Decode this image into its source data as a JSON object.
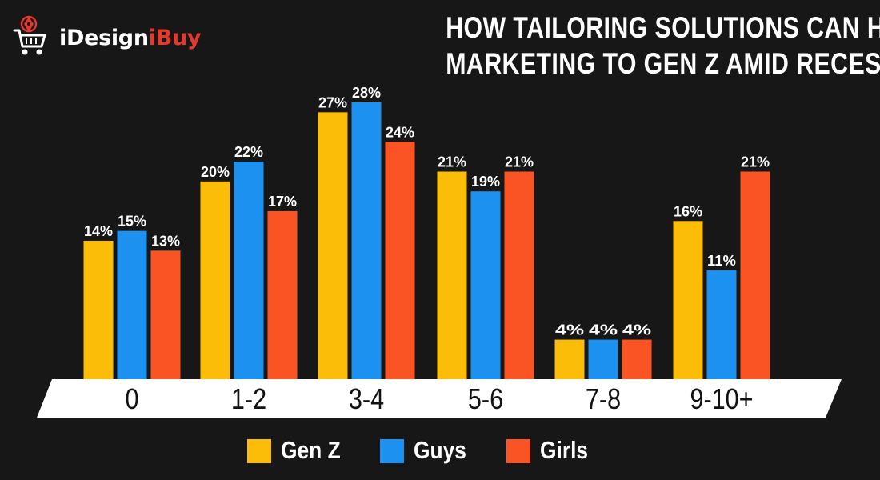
{
  "brand": {
    "name_part1": "iDesign",
    "name_part2": "iBuy",
    "accent_color": "#e23a2e"
  },
  "title_lines": [
    "HOW TAILORING SOLUTIONS CAN HELP",
    "MARKETING TO GEN Z AMID RECESSION"
  ],
  "legend": [
    {
      "label": "Gen Z",
      "color": "#fbbd08"
    },
    {
      "label": "Guys",
      "color": "#1d91ef"
    },
    {
      "label": "Girls",
      "color": "#fb5424"
    }
  ],
  "chart_data": {
    "type": "bar",
    "title": "HOW TAILORING SOLUTIONS CAN HELP MARKETING TO GEN Z AMID RECESSION",
    "xlabel": "",
    "ylabel": "",
    "categories": [
      "0",
      "1-2",
      "3-4",
      "5-6",
      "7-8",
      "9-10+"
    ],
    "series": [
      {
        "name": "Gen Z",
        "color": "#fbbd08",
        "values": [
          14,
          20,
          27,
          21,
          4,
          16
        ]
      },
      {
        "name": "Guys",
        "color": "#1d91ef",
        "values": [
          15,
          22,
          28,
          19,
          4,
          11
        ]
      },
      {
        "name": "Girls",
        "color": "#fb5424",
        "values": [
          13,
          17,
          24,
          21,
          4,
          21
        ]
      }
    ],
    "value_suffix": "%",
    "ylim": [
      0,
      28
    ],
    "grid": false,
    "legend_position": "bottom"
  }
}
